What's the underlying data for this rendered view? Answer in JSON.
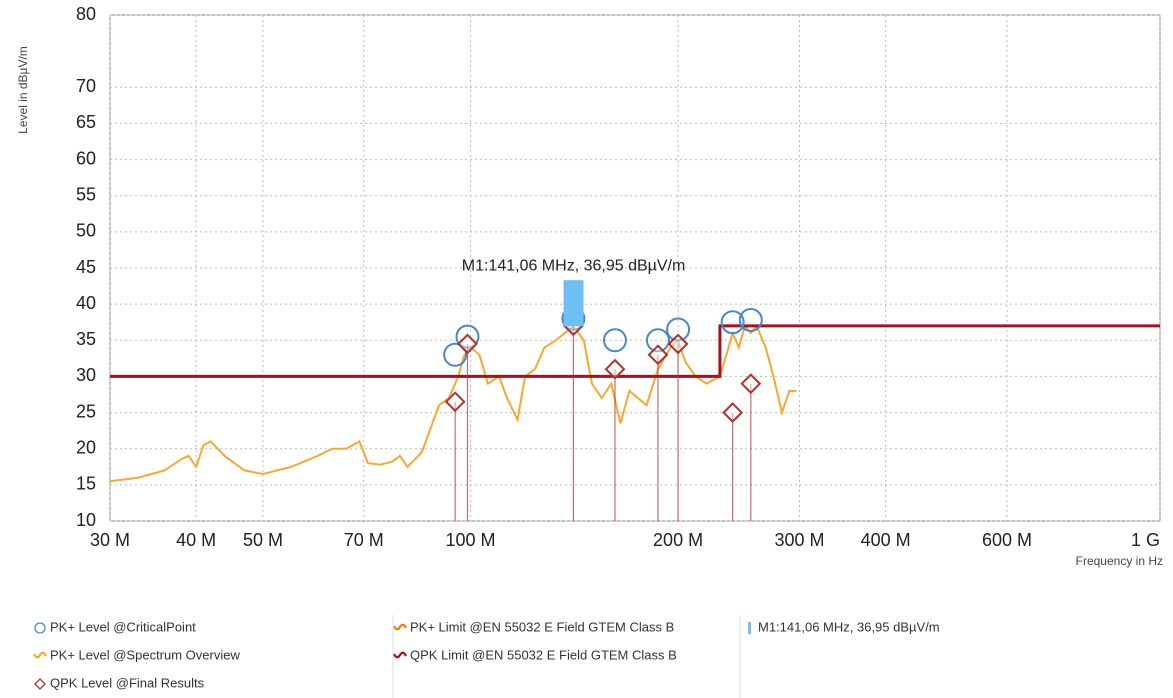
{
  "chart_data": {
    "type": "line",
    "ylabel": "Level in dBµV/m",
    "xlabel": "Frequency in Hz",
    "xscale": "log",
    "grid": true,
    "xlim": [
      30000000,
      1000000000
    ],
    "ylim": [
      10,
      80
    ],
    "xticks": [
      {
        "value": 30000000,
        "label": "30 M"
      },
      {
        "value": 40000000,
        "label": "40 M"
      },
      {
        "value": 50000000,
        "label": "50 M"
      },
      {
        "value": 70000000,
        "label": "70 M"
      },
      {
        "value": 100000000,
        "label": "100 M"
      },
      {
        "value": 200000000,
        "label": "200 M"
      },
      {
        "value": 300000000,
        "label": "300 M"
      },
      {
        "value": 400000000,
        "label": "400 M"
      },
      {
        "value": 600000000,
        "label": "600 M"
      },
      {
        "value": 1000000000,
        "label": "1 G"
      }
    ],
    "yticks": [
      10,
      15,
      20,
      25,
      30,
      35,
      40,
      45,
      50,
      55,
      60,
      65,
      70,
      80
    ],
    "series": [
      {
        "name": "PK+ Level @CriticalPoint",
        "kind": "circle",
        "color": "#4a86c8",
        "x": [
          95000000,
          99000000,
          141000000,
          162000000,
          187000000,
          200000000,
          240000000,
          255000000
        ],
        "values": [
          33,
          35.5,
          38,
          35,
          35,
          36.5,
          37.5,
          37.8
        ]
      },
      {
        "name": "PK+ Level @Spectrum Overview",
        "kind": "line",
        "color": "#f7a830",
        "x": [
          30000000,
          33000000,
          36000000,
          38000000,
          39000000,
          40000000,
          41000000,
          42000000,
          44000000,
          47000000,
          50000000,
          55000000,
          60000000,
          63000000,
          66000000,
          69000000,
          71000000,
          74000000,
          77000000,
          79000000,
          81000000,
          85000000,
          90000000,
          93000000,
          96000000,
          98000000,
          100000000,
          103000000,
          106000000,
          110000000,
          113000000,
          117000000,
          120000000,
          124000000,
          128000000,
          133000000,
          137000000,
          141000000,
          146000000,
          150000000,
          155000000,
          160000000,
          165000000,
          170000000,
          180000000,
          187000000,
          195000000,
          200000000,
          205000000,
          212000000,
          220000000,
          230000000,
          235000000,
          240000000,
          245000000,
          250000000,
          255000000,
          260000000,
          268000000,
          275000000,
          283000000,
          290000000,
          297000000
        ],
        "values": [
          15.5,
          16,
          17,
          18.5,
          19,
          17.5,
          20.5,
          21,
          19,
          17,
          16.5,
          17.5,
          19,
          20,
          20,
          21,
          18,
          17.8,
          18.2,
          19,
          17.5,
          19.5,
          26,
          27,
          30,
          33,
          34,
          33,
          29,
          30,
          27,
          24,
          30,
          31,
          34,
          35,
          36,
          36.95,
          35,
          29,
          27,
          29,
          23.5,
          28,
          26,
          31,
          34,
          35,
          32,
          30,
          29,
          30,
          33,
          36,
          34,
          37,
          36,
          37,
          34,
          30,
          25,
          28,
          28
        ]
      },
      {
        "name": "QPK Level @Final Results",
        "kind": "diamond",
        "color": "#b03030",
        "x": [
          95000000,
          99000000,
          141000000,
          162000000,
          187000000,
          200000000,
          240000000,
          255000000
        ],
        "values": [
          26.5,
          34.5,
          37,
          31,
          33,
          34.5,
          25,
          29
        ]
      },
      {
        "name": "PK+ Limit @EN 55032 E Field GTEM Class B",
        "kind": "line",
        "color": "#f07d00",
        "x": [],
        "values": []
      },
      {
        "name": "QPK Limit @EN 55032 E Field GTEM Class B",
        "kind": "line",
        "color": "#a8101e",
        "x": [
          30000000,
          230000000,
          230000000,
          1000000000
        ],
        "values": [
          30,
          30,
          37,
          37
        ]
      }
    ],
    "marker": {
      "label": "M1:141,06 MHz, 36,95 dBµV/m",
      "x": 141060000,
      "value": 36.95,
      "color": "#6ec0f5"
    }
  }
}
